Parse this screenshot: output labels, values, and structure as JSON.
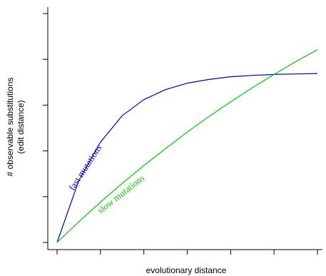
{
  "chart_data": {
    "type": "line",
    "title": "",
    "xlabel": "evolutionary distance",
    "ylabel": [
      "# observable substitutions",
      "(edit distance)"
    ],
    "xlim": [
      0,
      6
    ],
    "ylim": [
      0,
      5
    ],
    "x_ticks": [
      0,
      1,
      2,
      3,
      4,
      5,
      6
    ],
    "y_ticks": [
      0,
      1,
      2,
      3,
      4,
      5
    ],
    "tick_labels_shown": false,
    "grid": false,
    "legend": "none (curves labeled inline)",
    "series": [
      {
        "name": "fast mutations",
        "color": "#0000cc",
        "x": [
          0,
          0.5,
          1,
          1.5,
          2,
          2.5,
          3,
          3.5,
          4,
          4.5,
          5,
          5.5,
          6
        ],
        "y": [
          0,
          1.35,
          2.19,
          2.77,
          3.12,
          3.34,
          3.48,
          3.56,
          3.62,
          3.65,
          3.67,
          3.68,
          3.69
        ]
      },
      {
        "name": "slow mutations",
        "color": "#00cc00",
        "x": [
          0,
          0.5,
          1,
          1.5,
          2,
          2.5,
          3,
          3.5,
          4,
          4.5,
          5,
          5.5,
          6
        ],
        "y": [
          0,
          0.45,
          0.88,
          1.29,
          1.68,
          2.05,
          2.41,
          2.75,
          3.07,
          3.38,
          3.67,
          3.95,
          4.21
        ]
      }
    ]
  }
}
